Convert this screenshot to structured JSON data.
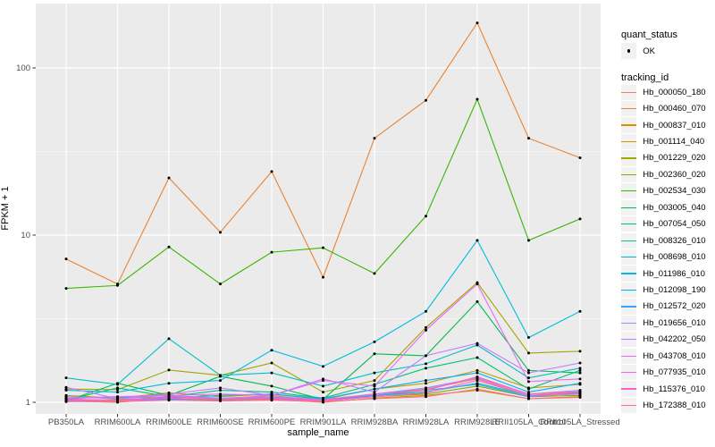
{
  "figure": {
    "background": "#FFFFFF",
    "panel_background": "#EBEBEB",
    "gridline_color": "#FFFFFF",
    "tick_mark_color": "#333333",
    "tick_label_color": "#4D4D4D",
    "axis_title_color": "#000000",
    "legend_key_background": "#F2F2F2",
    "point_color": "#000000"
  },
  "legend": {
    "quant_status_title": "quant_status",
    "quant_ok_label": "OK",
    "tracking_title": "tracking_id"
  },
  "chart_data": {
    "type": "line",
    "title": "",
    "xlabel": "sample_name",
    "ylabel": "FPKM + 1",
    "y_scale": "log10",
    "y_ticks": [
      1,
      10,
      100
    ],
    "y_minor_ticks": [
      3.162,
      31.62
    ],
    "ylim": [
      0.9,
      240
    ],
    "grid": "on",
    "legend_position": "right",
    "marker": "black point (quant_status OK)",
    "x_categories": [
      "PB350LA",
      "RRIM600LA",
      "RRIM600LE",
      "RRIM600SE",
      "RRIM600PE",
      "RRIM901LA",
      "RRIM928BA",
      "RRIM928LA",
      "RRIM928LE",
      "RRII105LA_Control",
      "RRII105LA_Stressed"
    ],
    "series": [
      {
        "name": "Hb_000050_180",
        "color": "#F8766D",
        "values": [
          1.05,
          1.02,
          1.08,
          1.05,
          1.1,
          1.02,
          1.12,
          1.2,
          1.38,
          1.1,
          1.15
        ]
      },
      {
        "name": "Hb_000460_070",
        "color": "#EA8331",
        "values": [
          7.2,
          5.1,
          22,
          10.4,
          24,
          5.6,
          38,
          64,
          186,
          38,
          29
        ]
      },
      {
        "name": "Hb_000837_010",
        "color": "#D89000",
        "values": [
          1.02,
          1.0,
          1.05,
          1.02,
          1.04,
          1.0,
          1.06,
          1.1,
          1.18,
          1.05,
          1.08
        ]
      },
      {
        "name": "Hb_001114_040",
        "color": "#C09B00",
        "values": [
          1.1,
          1.06,
          1.14,
          1.08,
          1.12,
          1.04,
          1.2,
          1.3,
          1.55,
          1.22,
          1.28
        ]
      },
      {
        "name": "Hb_001229_020",
        "color": "#A3A500",
        "values": [
          1.2,
          1.19,
          1.56,
          1.45,
          1.72,
          1.15,
          1.35,
          2.8,
          5.2,
          1.97,
          2.02
        ]
      },
      {
        "name": "Hb_002360_020",
        "color": "#7CAE00",
        "values": [
          1.02,
          1.04,
          1.06,
          1.03,
          1.05,
          1.02,
          1.08,
          1.12,
          1.25,
          1.08,
          1.1
        ]
      },
      {
        "name": "Hb_002534_030",
        "color": "#39B600",
        "values": [
          4.8,
          5.0,
          8.5,
          5.1,
          7.9,
          8.4,
          5.9,
          13,
          65,
          9.3,
          12.5
        ]
      },
      {
        "name": "Hb_003005_040",
        "color": "#00BB4E",
        "values": [
          1.02,
          1.3,
          1.1,
          1.43,
          1.25,
          1.04,
          1.95,
          1.9,
          4.0,
          1.55,
          1.5
        ]
      },
      {
        "name": "Hb_007054_050",
        "color": "#00BF7D",
        "values": [
          1.03,
          1.22,
          1.08,
          1.18,
          1.15,
          1.06,
          1.28,
          1.6,
          1.85,
          1.2,
          1.55
        ]
      },
      {
        "name": "Hb_008326_010",
        "color": "#00C1A3",
        "values": [
          1.01,
          1.03,
          1.05,
          1.04,
          1.06,
          1.02,
          1.1,
          1.15,
          1.3,
          1.1,
          1.12
        ]
      },
      {
        "name": "Hb_008698_010",
        "color": "#00BFC4",
        "values": [
          1.4,
          1.28,
          2.4,
          1.45,
          1.5,
          1.25,
          1.5,
          1.7,
          2.2,
          1.4,
          1.6
        ]
      },
      {
        "name": "Hb_011986_010",
        "color": "#00BAE0",
        "values": [
          1.18,
          1.15,
          1.3,
          1.35,
          2.05,
          1.64,
          2.3,
          3.5,
          9.3,
          2.44,
          3.5
        ]
      },
      {
        "name": "Hb_012098_190",
        "color": "#00B0F6",
        "values": [
          1.05,
          1.08,
          1.06,
          1.1,
          1.12,
          1.05,
          1.2,
          1.35,
          1.5,
          1.15,
          1.3
        ]
      },
      {
        "name": "Hb_012572_020",
        "color": "#35A2FF",
        "values": [
          1.02,
          1.03,
          1.04,
          1.05,
          1.06,
          1.03,
          1.1,
          1.18,
          1.28,
          1.08,
          1.14
        ]
      },
      {
        "name": "Hb_019656_010",
        "color": "#9590FF",
        "values": [
          1.08,
          1.05,
          1.1,
          1.06,
          1.08,
          1.04,
          1.12,
          1.22,
          1.4,
          1.12,
          1.18
        ]
      },
      {
        "name": "Hb_042202_050",
        "color": "#C77CFF",
        "values": [
          1.23,
          1.05,
          1.12,
          1.22,
          1.1,
          1.38,
          1.15,
          1.9,
          2.25,
          1.5,
          1.72
        ]
      },
      {
        "name": "Hb_043708_010",
        "color": "#E76BF3",
        "values": [
          1.06,
          1.08,
          1.1,
          1.12,
          1.1,
          1.35,
          1.25,
          2.7,
          5.1,
          1.33,
          1.38
        ]
      },
      {
        "name": "Hb_077935_010",
        "color": "#FA62DB",
        "values": [
          1.03,
          1.02,
          1.06,
          1.04,
          1.05,
          1.02,
          1.08,
          1.14,
          1.35,
          1.1,
          1.12
        ]
      },
      {
        "name": "Hb_115376_010",
        "color": "#FF62BC",
        "values": [
          1.04,
          1.03,
          1.08,
          1.05,
          1.07,
          1.03,
          1.12,
          1.18,
          1.42,
          1.12,
          1.16
        ]
      },
      {
        "name": "Hb_172388_010",
        "color": "#FF6A98",
        "values": [
          1.01,
          1.01,
          1.03,
          1.02,
          1.03,
          1.01,
          1.05,
          1.08,
          1.2,
          1.05,
          1.07
        ]
      }
    ]
  }
}
